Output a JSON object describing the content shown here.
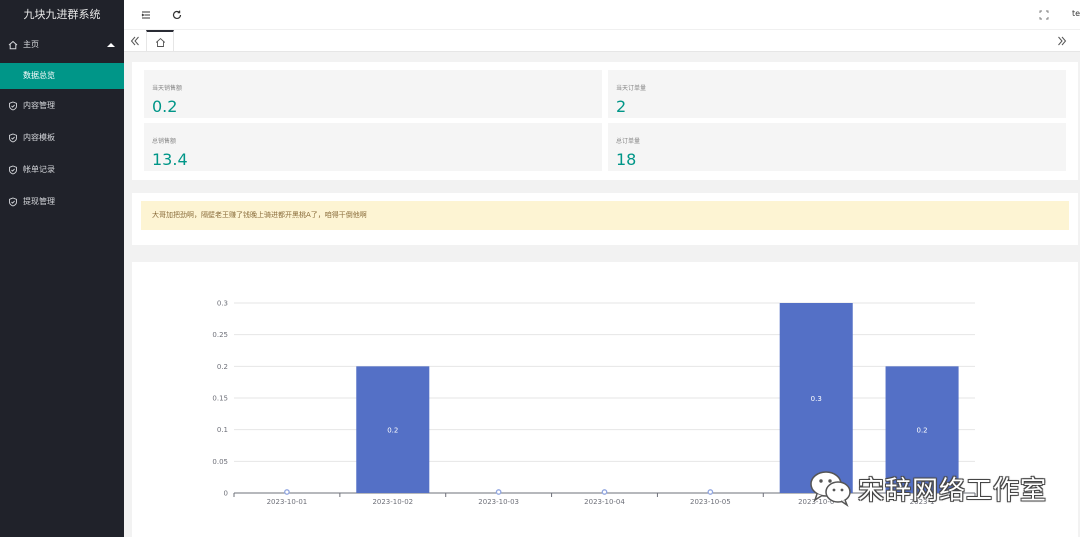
{
  "app": {
    "title": "九块九进群系统"
  },
  "sidebar": {
    "items": [
      {
        "label": "主页",
        "icon": "home-icon"
      },
      {
        "label": "数据总览",
        "icon": ""
      },
      {
        "label": "内容管理",
        "icon": "shield-icon"
      },
      {
        "label": "内容模板",
        "icon": "shield-icon"
      },
      {
        "label": "帐单记录",
        "icon": "shield-icon"
      },
      {
        "label": "提现管理",
        "icon": "shield-icon"
      }
    ]
  },
  "topbar": {
    "user": "te"
  },
  "stats": [
    {
      "label": "当天销售额",
      "value": "0.2"
    },
    {
      "label": "当天订单量",
      "value": "2"
    },
    {
      "label": "总销售额",
      "value": "13.4"
    },
    {
      "label": "总订单量",
      "value": "18"
    }
  ],
  "notice": {
    "text": "大哥加把劲啊，隔壁老王赚了钱晚上骑进都开黑桃A了，咱得干倒他啊"
  },
  "colors": {
    "accent": "#009688",
    "bar": "#5470c6",
    "sidebar": "#20222a",
    "notice_bg": "#fdf4d3"
  },
  "chart_data": {
    "type": "bar",
    "categories": [
      "2023-10-01",
      "2023-10-02",
      "2023-10-03",
      "2023-10-04",
      "2023-10-05",
      "2023-10-06",
      "2023-10-07"
    ],
    "category_labels": [
      "2023-10-01",
      "2023-10-02",
      "2023-10-03",
      "2023-10-04",
      "2023-10-05",
      "2023-10-0",
      "2023-1"
    ],
    "values": [
      0,
      0.2,
      0,
      0,
      0,
      0.3,
      0.2
    ],
    "data_labels": [
      "",
      "0.2",
      "",
      "",
      "",
      "0.3",
      "0.2"
    ],
    "ylim": [
      0,
      0.3
    ],
    "yticks": [
      "0",
      "0.05",
      "0.1",
      "0.15",
      "0.2",
      "0.25",
      "0.3"
    ],
    "grid": true
  },
  "watermark": {
    "text": "宋辞网络工作室"
  }
}
